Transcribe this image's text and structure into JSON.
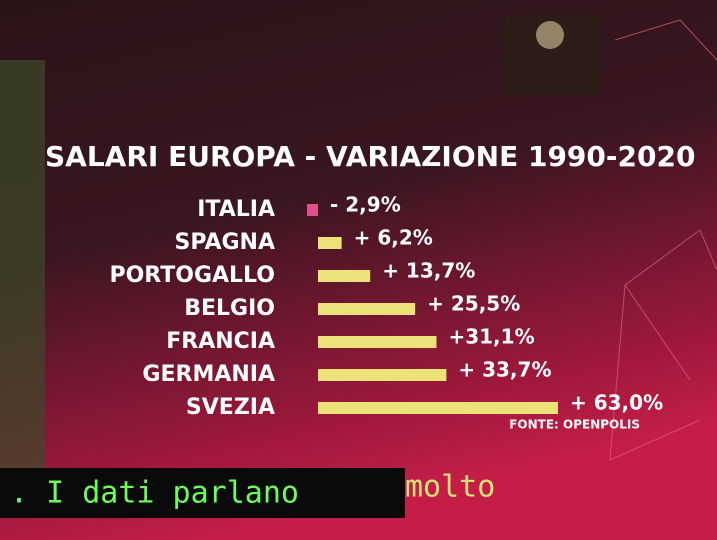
{
  "chart_data": {
    "type": "bar",
    "orientation": "horizontal",
    "title": "SALARI EUROPA - VARIAZIONE 1990-2020",
    "categories": [
      "ITALIA",
      "SPAGNA",
      "PORTOGALLO",
      "BELGIO",
      "FRANCIA",
      "GERMANIA",
      "SVEZIA"
    ],
    "values": [
      -2.9,
      6.2,
      13.7,
      25.5,
      31.1,
      33.7,
      63.0
    ],
    "value_labels": [
      "- 2,9%",
      "+ 6,2%",
      "+ 13,7%",
      "+ 25,5%",
      "+31,1%",
      "+ 33,7%",
      "+ 63,0%"
    ],
    "colors": [
      "#e0508a",
      "#ece27a",
      "#ece27a",
      "#ece27a",
      "#ece27a",
      "#ece27a",
      "#ece27a"
    ],
    "source": "FONTE: OPENPOLIS"
  },
  "ticker": {
    "text": ". I dati parlano",
    "continuation": "molto"
  }
}
